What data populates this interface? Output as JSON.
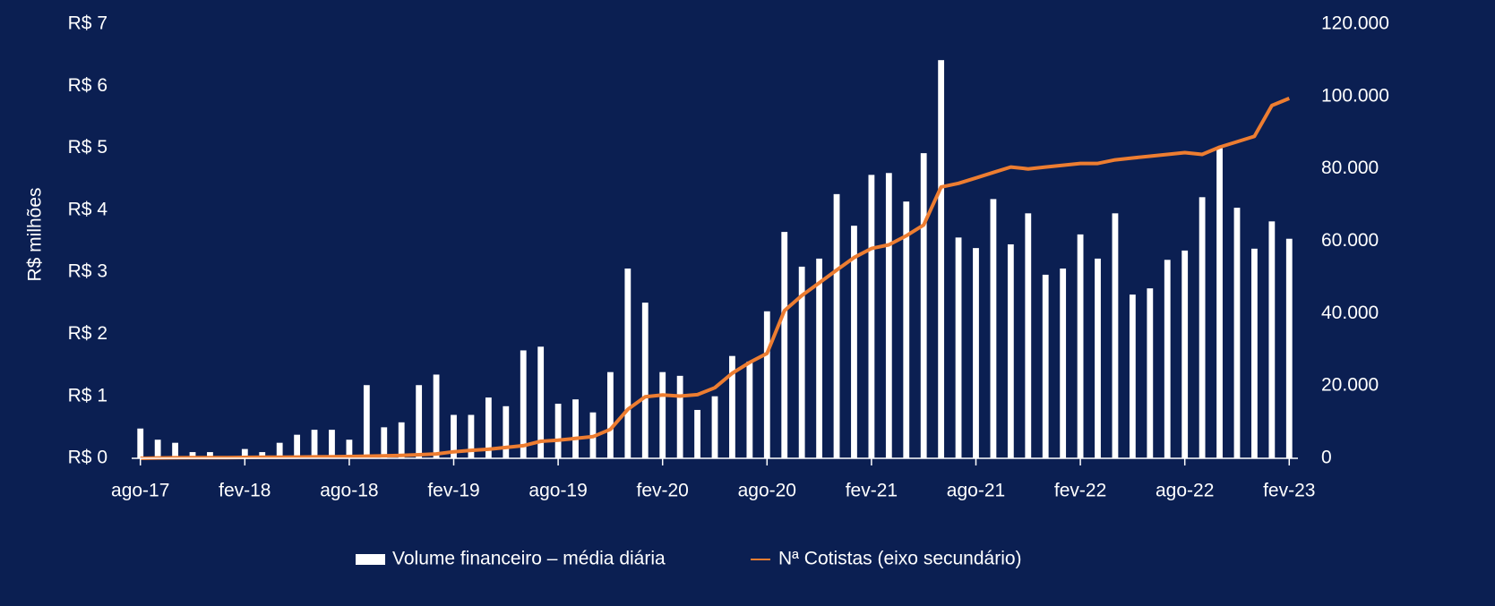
{
  "chart_data": {
    "type": "bar",
    "y_label": "R$ milhões",
    "categories": [
      "ago-17",
      null,
      null,
      null,
      null,
      null,
      "fev-18",
      null,
      null,
      null,
      null,
      null,
      "ago-18",
      null,
      null,
      null,
      null,
      null,
      "fev-19",
      null,
      null,
      null,
      null,
      null,
      "ago-19",
      null,
      null,
      null,
      null,
      null,
      "fev-20",
      null,
      null,
      null,
      null,
      null,
      "ago-20",
      null,
      null,
      null,
      null,
      null,
      "fev-21",
      null,
      null,
      null,
      null,
      null,
      "ago-21",
      null,
      null,
      null,
      null,
      null,
      "fev-22",
      null,
      null,
      null,
      null,
      null,
      "ago-22",
      null,
      null,
      null,
      null,
      null,
      "fev-23"
    ],
    "series": [
      {
        "name": "Volume financeiro – média diária",
        "type": "bar",
        "color": "#ffffff",
        "values": [
          0.48,
          0.3,
          0.25,
          0.1,
          0.1,
          0.03,
          0.15,
          0.1,
          0.25,
          0.38,
          0.46,
          0.46,
          0.3,
          1.18,
          0.5,
          0.58,
          1.18,
          1.35,
          0.7,
          0.7,
          0.98,
          0.84,
          1.74,
          1.8,
          0.88,
          0.95,
          0.74,
          1.39,
          3.06,
          2.51,
          1.39,
          1.33,
          0.78,
          1.0,
          1.65,
          1.56,
          2.37,
          3.65,
          3.09,
          3.22,
          4.26,
          3.75,
          4.57,
          4.6,
          4.14,
          4.92,
          6.42,
          3.56,
          3.39,
          4.18,
          3.45,
          3.95,
          2.96,
          3.06,
          3.61,
          3.22,
          3.95,
          2.64,
          2.74,
          3.2,
          3.35,
          4.21,
          5.0,
          4.04,
          3.38,
          3.82,
          3.54
        ]
      },
      {
        "name": "Nª Cotistas (eixo secundário)",
        "type": "line",
        "axis": "y2",
        "color": "#ed7d31",
        "values": [
          0,
          100,
          150,
          200,
          200,
          200,
          250,
          300,
          300,
          350,
          400,
          450,
          500,
          600,
          700,
          800,
          1000,
          1200,
          1800,
          2200,
          2500,
          3000,
          3500,
          4700,
          5000,
          5500,
          6000,
          8000,
          13500,
          17000,
          17500,
          17200,
          17600,
          19500,
          23500,
          26500,
          29000,
          40800,
          45000,
          48500,
          52000,
          55500,
          58000,
          59000,
          61500,
          64500,
          75000,
          76000,
          77500,
          79000,
          80500,
          80000,
          80500,
          81000,
          81500,
          81500,
          82500,
          83000,
          83500,
          84000,
          84500,
          84000,
          86000,
          87500,
          89000,
          97500,
          99500
        ]
      }
    ],
    "ylim": [
      0,
      7
    ],
    "yticks": [
      {
        "value": 0,
        "label": "R$ 0"
      },
      {
        "value": 1,
        "label": "R$ 1"
      },
      {
        "value": 2,
        "label": "R$ 2"
      },
      {
        "value": 3,
        "label": "R$ 3"
      },
      {
        "value": 4,
        "label": "R$ 4"
      },
      {
        "value": 5,
        "label": "R$ 5"
      },
      {
        "value": 6,
        "label": "R$ 6"
      },
      {
        "value": 7,
        "label": "R$ 7"
      }
    ],
    "y2lim": [
      0,
      120000
    ],
    "y2ticks": [
      0,
      {
        "value": 20000,
        "label": "20.000"
      },
      {
        "value": 40000,
        "label": "40.000"
      },
      {
        "value": 60000,
        "label": "60.000"
      },
      {
        "value": 80000,
        "label": "80.000"
      },
      {
        "value": 100000,
        "label": "100.000"
      },
      {
        "value": 120000,
        "label": "120.000"
      }
    ],
    "legend": "bottom",
    "grid": false
  }
}
